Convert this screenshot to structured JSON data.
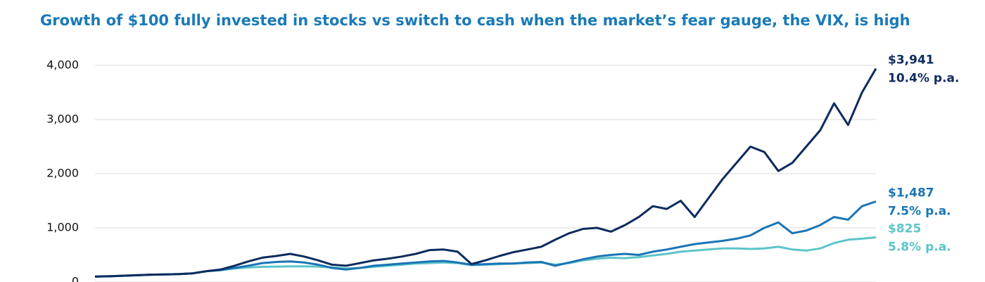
{
  "chart_data": {
    "type": "line",
    "title": "Growth of $100 fully invested in stocks vs switch to cash when the market’s fear gauge, the VIX, is high",
    "ylim": [
      0,
      4000
    ],
    "yticks": [
      0,
      {
        "value": 1000,
        "label": "1,000"
      },
      {
        "value": 2000,
        "label": "2,000"
      },
      {
        "value": 3000,
        "label": "3,000"
      },
      {
        "value": 4000,
        "label": "4,000"
      }
    ],
    "grid": true,
    "series": [
      {
        "color": "#0d2b5e",
        "value_label": "$3,941",
        "return_label": "10.4% p.a.",
        "values": [
          100,
          105,
          115,
          125,
          135,
          140,
          145,
          160,
          200,
          230,
          300,
          380,
          450,
          480,
          520,
          470,
          400,
          320,
          300,
          350,
          400,
          430,
          470,
          520,
          590,
          600,
          560,
          330,
          400,
          480,
          550,
          600,
          650,
          780,
          900,
          980,
          1000,
          930,
          1050,
          1200,
          1400,
          1350,
          1500,
          1200,
          1550,
          1900,
          2200,
          2500,
          2400,
          2050,
          2200,
          2500,
          2800,
          3300,
          2900,
          3500,
          3941
        ]
      },
      {
        "color": "#1a75b5",
        "value_label": "$1,487",
        "return_label": "7.5% p.a.",
        "values": [
          100,
          105,
          115,
          125,
          135,
          140,
          145,
          160,
          200,
          220,
          260,
          300,
          350,
          370,
          380,
          360,
          320,
          260,
          230,
          260,
          300,
          320,
          340,
          360,
          380,
          390,
          360,
          320,
          330,
          340,
          340,
          360,
          370,
          300,
          360,
          420,
          470,
          500,
          520,
          500,
          560,
          600,
          650,
          700,
          730,
          760,
          800,
          860,
          1000,
          1100,
          900,
          950,
          1050,
          1200,
          1150,
          1400,
          1487
        ]
      },
      {
        "color": "#5cc5c7",
        "value_label": "$825",
        "return_label": "5.8% p.a.",
        "values": [
          100,
          105,
          115,
          125,
          135,
          140,
          145,
          160,
          200,
          220,
          250,
          270,
          280,
          285,
          290,
          290,
          285,
          270,
          250,
          260,
          280,
          300,
          320,
          340,
          350,
          360,
          350,
          310,
          320,
          330,
          340,
          350,
          360,
          320,
          350,
          400,
          430,
          450,
          440,
          460,
          490,
          520,
          560,
          580,
          600,
          620,
          620,
          610,
          620,
          650,
          600,
          580,
          620,
          720,
          780,
          800,
          825
        ]
      }
    ]
  }
}
